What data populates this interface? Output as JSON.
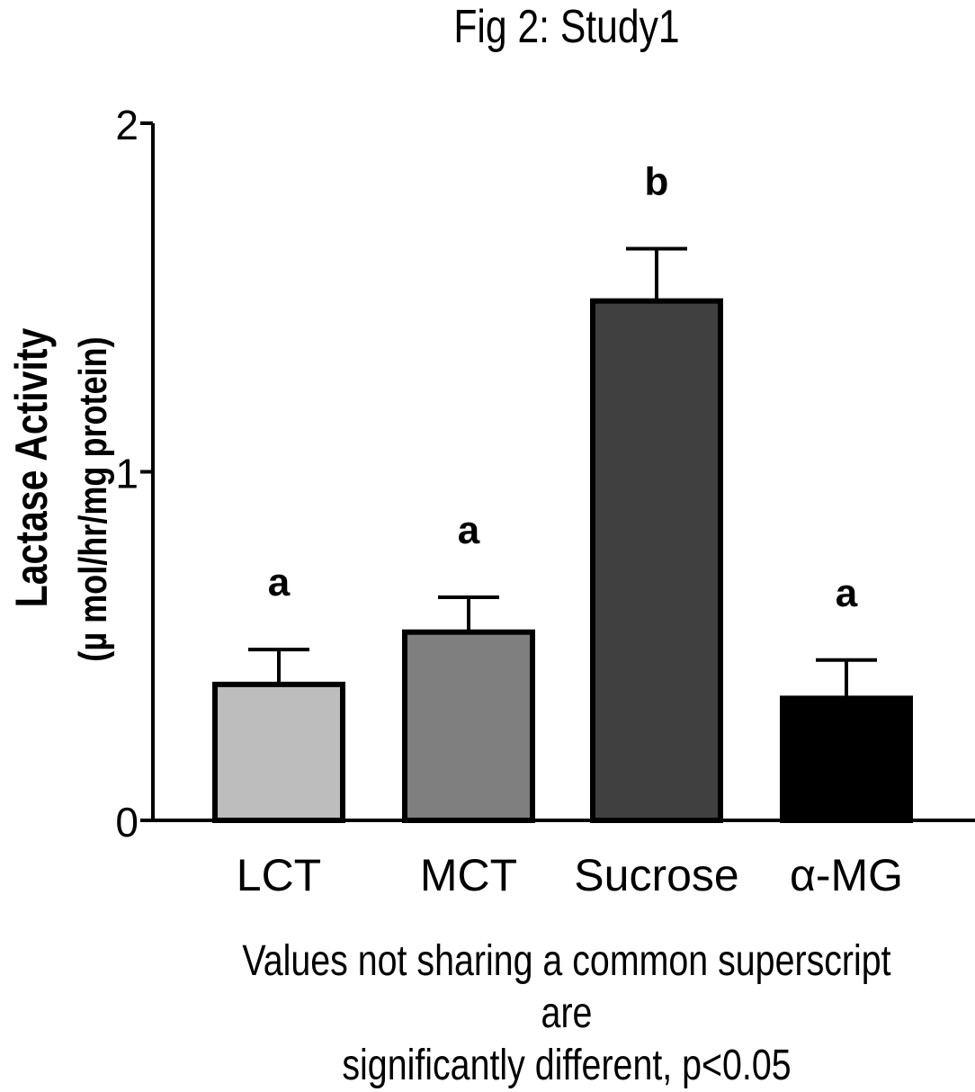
{
  "chart_data": {
    "type": "bar",
    "title": "Fig 2: Study1",
    "ylabel": "Lactase Activity",
    "ylabel_units": "(µ mol/hr/mg protein)",
    "ylim": [
      0,
      2
    ],
    "yticks": [
      "0",
      "1",
      "2"
    ],
    "categories": [
      "LCT",
      "MCT",
      "Sucrose",
      "α-MG"
    ],
    "values": [
      0.39,
      0.54,
      1.49,
      0.35
    ],
    "errors": [
      0.1,
      0.1,
      0.15,
      0.11
    ],
    "superscripts": [
      "a",
      "a",
      "b",
      "a"
    ],
    "colors": [
      "#bdbdbd",
      "#7f7f7f",
      "#404040",
      "#000000"
    ],
    "grid": false,
    "legend": "none"
  },
  "footnote": {
    "line1": "Values not sharing a common superscript are",
    "line2": "significantly different, p<0.05"
  }
}
